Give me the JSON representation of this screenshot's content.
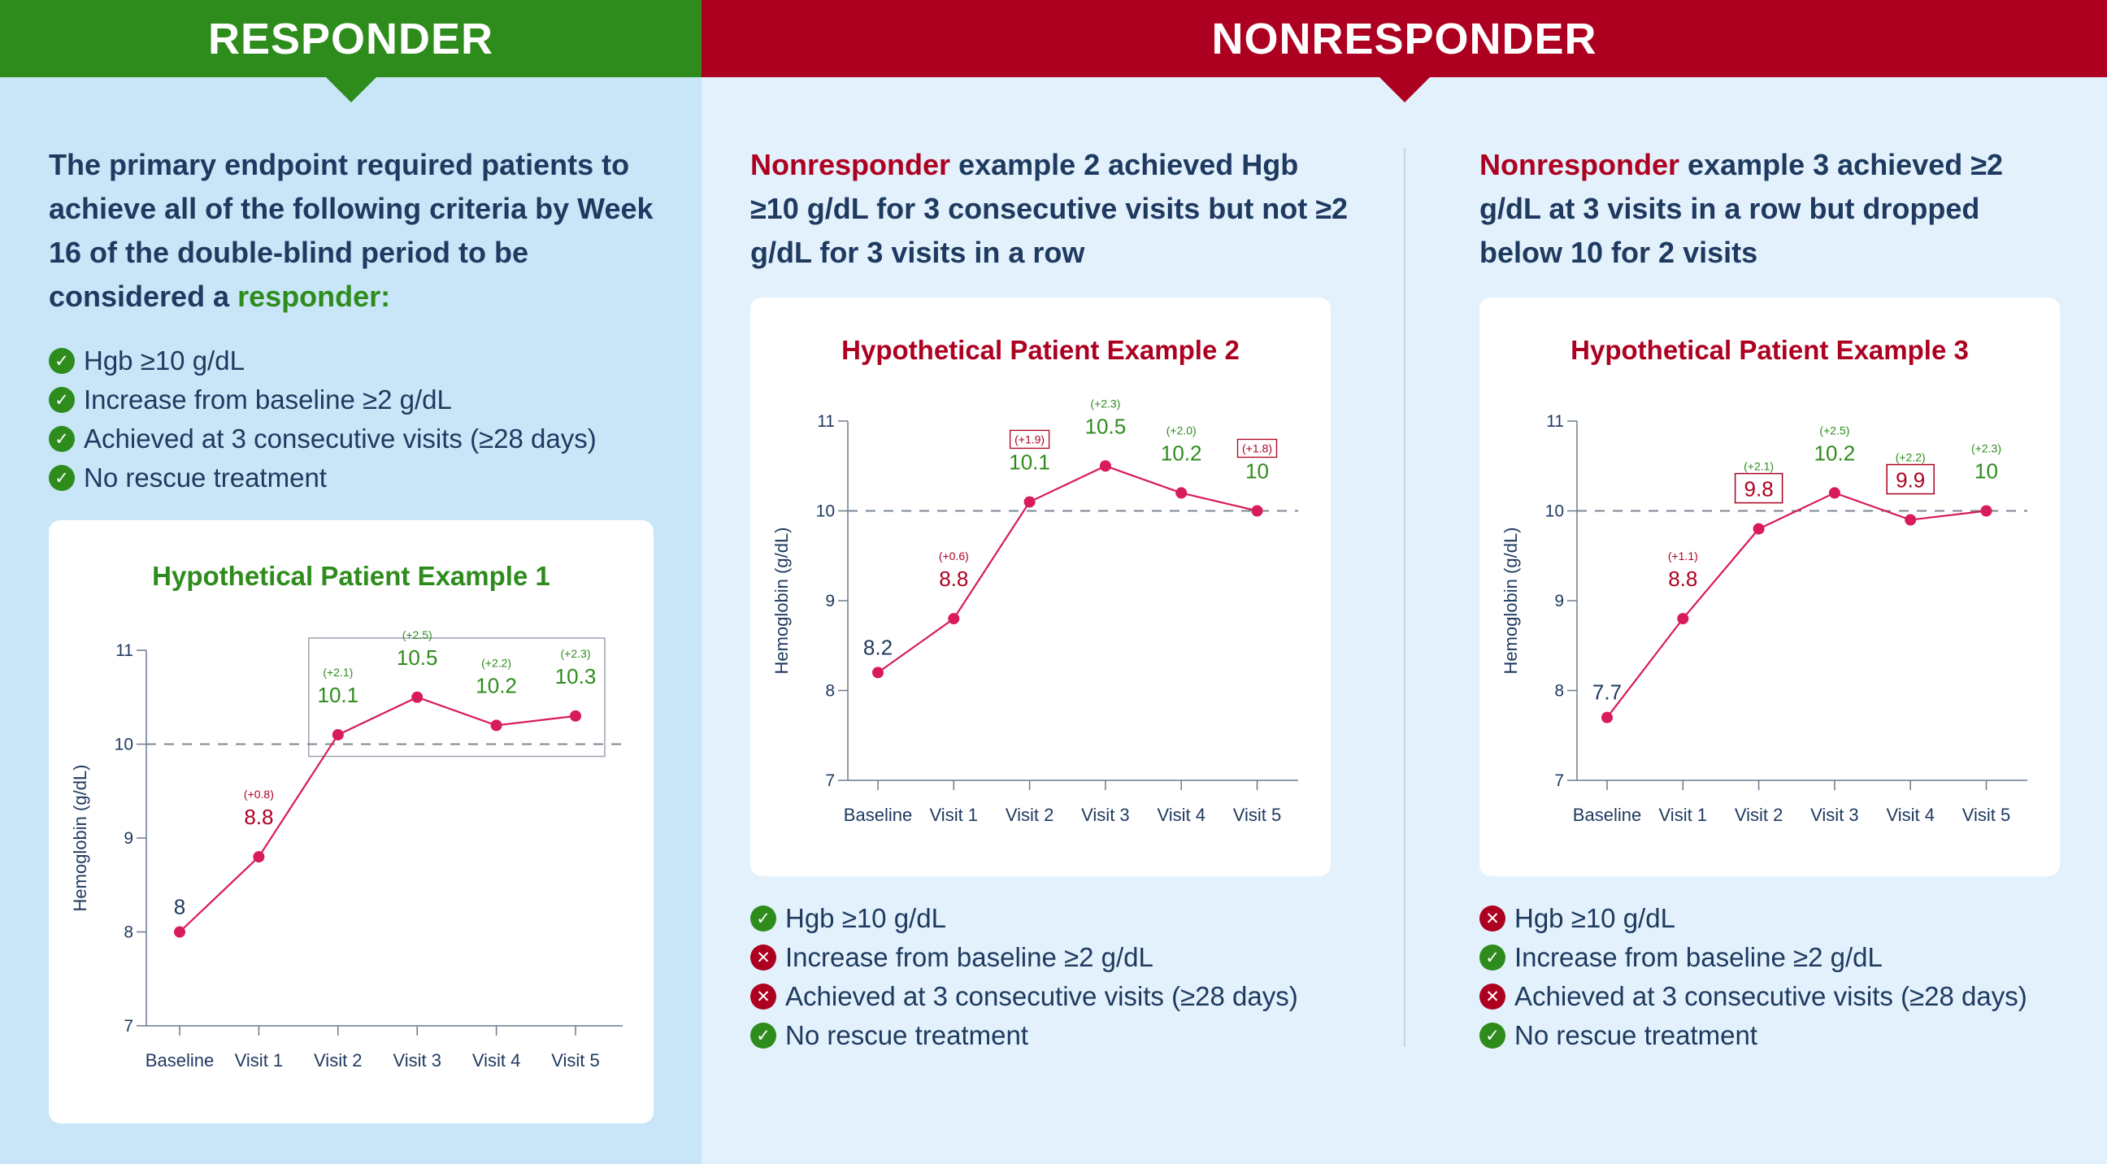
{
  "banners": {
    "responder": "RESPONDER",
    "nonresponder": "NONRESPONDER"
  },
  "colors": {
    "green": "#2e8c1c",
    "red": "#ad0021",
    "navy": "#1f3a60",
    "line": "#d81b5a"
  },
  "responder": {
    "heading_main": "The primary endpoint required patients to achieve all of the following criteria by Week 16 of the double-blind period to be considered a ",
    "heading_highlight": "responder:",
    "criteria": [
      {
        "status": "check-icon",
        "text": "Hgb ≥10 g/dL"
      },
      {
        "status": "check-icon",
        "text": "Increase from baseline ≥2 g/dL"
      },
      {
        "status": "check-icon",
        "text": "Achieved at 3 consecutive visits (≥28 days)"
      },
      {
        "status": "check-icon",
        "text": "No rescue treatment"
      }
    ]
  },
  "nonresponder2": {
    "heading_highlight": "Nonresponder",
    "heading_main": " example 2 achieved Hgb ≥10 g/dL for 3 consecutive visits but not ≥2 g/dL for 3 visits in a row",
    "criteria": [
      {
        "status": "check-icon",
        "text": "Hgb ≥10 g/dL"
      },
      {
        "status": "cross-icon",
        "text": "Increase from baseline ≥2 g/dL"
      },
      {
        "status": "cross-icon",
        "text": "Achieved at 3 consecutive visits (≥28 days)"
      },
      {
        "status": "check-icon",
        "text": "No rescue treatment"
      }
    ]
  },
  "nonresponder3": {
    "heading_highlight": "Nonresponder",
    "heading_main": " example 3 achieved ≥2 g/dL at 3 visits in a row but dropped below 10 for 2 visits",
    "criteria": [
      {
        "status": "cross-icon",
        "text": "Hgb ≥10 g/dL"
      },
      {
        "status": "check-icon",
        "text": "Increase from baseline ≥2 g/dL"
      },
      {
        "status": "cross-icon",
        "text": "Achieved at 3 consecutive visits (≥28 days)"
      },
      {
        "status": "check-icon",
        "text": "No rescue treatment"
      }
    ]
  },
  "chart_data": [
    {
      "type": "line",
      "title": "Hypothetical Patient Example 1",
      "title_color": "#2e8c1c",
      "ylabel": "Hemoglobin (g/dL)",
      "xlabel": "",
      "ylim": [
        7,
        11
      ],
      "yticks": [
        "7",
        "8",
        "9",
        "10",
        "11"
      ],
      "threshold": 10,
      "categories": [
        "Baseline",
        "Visit 1",
        "Visit 2",
        "Visit 3",
        "Visit 4",
        "Visit 5"
      ],
      "values": [
        8,
        8.8,
        10.1,
        10.5,
        10.2,
        10.3
      ],
      "value_labels": [
        "8",
        "8.8",
        "10.1",
        "10.5",
        "10.2",
        "10.3"
      ],
      "change_labels": [
        "",
        "(+0.8)",
        "(+2.1)",
        "(+2.5)",
        "(+2.2)",
        "(+2.3)"
      ],
      "label_colors": [
        "#1f3a60",
        "#ad0021",
        "#2e8c1c",
        "#2e8c1c",
        "#2e8c1c",
        "#2e8c1c"
      ],
      "highlight_range": [
        2,
        5
      ],
      "boxed_values": [],
      "boxed_changes": []
    },
    {
      "type": "line",
      "title": "Hypothetical Patient Example 2",
      "title_color": "#ad0021",
      "ylabel": "Hemoglobin (g/dL)",
      "xlabel": "",
      "ylim": [
        7,
        11
      ],
      "yticks": [
        "7",
        "8",
        "9",
        "10",
        "11"
      ],
      "threshold": 10,
      "categories": [
        "Baseline",
        "Visit 1",
        "Visit 2",
        "Visit 3",
        "Visit 4",
        "Visit 5"
      ],
      "values": [
        8.2,
        8.8,
        10.1,
        10.5,
        10.2,
        10
      ],
      "value_labels": [
        "8.2",
        "8.8",
        "10.1",
        "10.5",
        "10.2",
        "10"
      ],
      "change_labels": [
        "",
        "(+0.6)",
        "(+1.9)",
        "(+2.3)",
        "(+2.0)",
        "(+1.8)"
      ],
      "label_colors": [
        "#1f3a60",
        "#ad0021",
        "#2e8c1c",
        "#2e8c1c",
        "#2e8c1c",
        "#2e8c1c"
      ],
      "change_colors": [
        "#1f3a60",
        "#ad0021",
        "#ad0021",
        "#2e8c1c",
        "#2e8c1c",
        "#ad0021"
      ],
      "highlight_range": null,
      "boxed_values": [],
      "boxed_changes": [
        2,
        5
      ]
    },
    {
      "type": "line",
      "title": "Hypothetical Patient Example 3",
      "title_color": "#ad0021",
      "ylabel": "Hemoglobin (g/dL)",
      "xlabel": "",
      "ylim": [
        7,
        11
      ],
      "yticks": [
        "7",
        "8",
        "9",
        "10",
        "11"
      ],
      "threshold": 10,
      "categories": [
        "Baseline",
        "Visit 1",
        "Visit 2",
        "Visit 3",
        "Visit 4",
        "Visit 5"
      ],
      "values": [
        7.7,
        8.8,
        9.8,
        10.2,
        9.9,
        10
      ],
      "value_labels": [
        "7.7",
        "8.8",
        "9.8",
        "10.2",
        "9.9",
        "10"
      ],
      "change_labels": [
        "",
        "(+1.1)",
        "(+2.1)",
        "(+2.5)",
        "(+2.2)",
        "(+2.3)"
      ],
      "label_colors": [
        "#1f3a60",
        "#ad0021",
        "#ad0021",
        "#2e8c1c",
        "#ad0021",
        "#2e8c1c"
      ],
      "change_colors": [
        "#1f3a60",
        "#ad0021",
        "#2e8c1c",
        "#2e8c1c",
        "#2e8c1c",
        "#2e8c1c"
      ],
      "highlight_range": null,
      "boxed_values": [
        2,
        4
      ],
      "boxed_changes": []
    }
  ]
}
